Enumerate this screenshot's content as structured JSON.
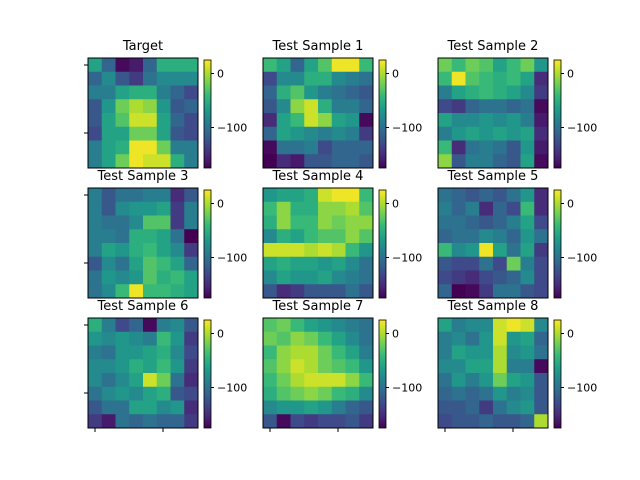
{
  "colors": {
    "colormap": "viridis",
    "stops": [
      "#440154",
      "#482878",
      "#3e4989",
      "#31688e",
      "#26828e",
      "#1f9e89",
      "#35b779",
      "#6ece58",
      "#b5de2b",
      "#fde725"
    ]
  },
  "chart_data": [
    {
      "type": "heatmap",
      "title": "Target",
      "colorbar": {
        "range": [
          -175,
          25
        ],
        "ticks": [
          0,
          -100
        ]
      },
      "grid": [
        [
          -60,
          -110,
          -170,
          -160,
          -110,
          -50,
          -50,
          -50
        ],
        [
          -110,
          -80,
          -120,
          -140,
          -100,
          -80,
          -80,
          -80
        ],
        [
          -90,
          -90,
          -60,
          -50,
          -50,
          -90,
          -110,
          -130
        ],
        [
          -120,
          -70,
          -20,
          0,
          -10,
          -70,
          -120,
          -110
        ],
        [
          -120,
          -60,
          -30,
          10,
          10,
          -60,
          -110,
          -130
        ],
        [
          -130,
          -60,
          -60,
          -20,
          -20,
          -60,
          -120,
          -130
        ],
        [
          -90,
          -60,
          -50,
          20,
          20,
          -20,
          -90,
          -90
        ],
        [
          -90,
          -60,
          -20,
          20,
          10,
          10,
          -50,
          -90
        ]
      ]
    },
    {
      "type": "heatmap",
      "title": "Test Sample 1",
      "colorbar": {
        "range": [
          -175,
          25
        ],
        "ticks": [
          0,
          -100
        ]
      },
      "grid": [
        [
          -40,
          -60,
          -110,
          -60,
          -30,
          20,
          20,
          -40
        ],
        [
          -130,
          -80,
          -80,
          -50,
          -50,
          -80,
          -90,
          -100
        ],
        [
          -110,
          -50,
          -30,
          -70,
          -90,
          -100,
          -110,
          -120
        ],
        [
          -120,
          -80,
          -10,
          10,
          -50,
          -90,
          -90,
          -110
        ],
        [
          -150,
          -60,
          -40,
          10,
          -10,
          -60,
          -70,
          -170
        ],
        [
          -110,
          -60,
          -70,
          -80,
          -90,
          -80,
          -90,
          -140
        ],
        [
          -170,
          -100,
          -100,
          -90,
          -130,
          -110,
          -110,
          -110
        ],
        [
          -175,
          -150,
          -160,
          -120,
          -120,
          -110,
          -110,
          -120
        ]
      ]
    },
    {
      "type": "heatmap",
      "title": "Test Sample 2",
      "colorbar": {
        "range": [
          -175,
          25
        ],
        "ticks": [
          0,
          -100
        ]
      },
      "grid": [
        [
          -20,
          -40,
          -20,
          -30,
          -60,
          -40,
          -20,
          -70
        ],
        [
          -40,
          20,
          -30,
          -40,
          -50,
          -40,
          -60,
          -150
        ],
        [
          -90,
          -60,
          -50,
          -40,
          -50,
          -60,
          -80,
          -140
        ],
        [
          -130,
          -140,
          -110,
          -100,
          -100,
          -110,
          -100,
          -170
        ],
        [
          -60,
          -80,
          -80,
          -70,
          -80,
          -70,
          -90,
          -160
        ],
        [
          -90,
          -70,
          -60,
          -70,
          -60,
          -70,
          -60,
          -150
        ],
        [
          -40,
          -150,
          -100,
          -90,
          -100,
          -120,
          -70,
          -160
        ],
        [
          -10,
          -120,
          -90,
          -90,
          -110,
          -120,
          -60,
          -170
        ]
      ]
    },
    {
      "type": "heatmap",
      "title": "Test Sample 3",
      "colorbar": {
        "range": [
          -175,
          25
        ],
        "ticks": [
          0,
          -100
        ]
      },
      "grid": [
        [
          -90,
          -120,
          -100,
          -100,
          -90,
          -90,
          -150,
          -120
        ],
        [
          -90,
          -120,
          -80,
          -70,
          -70,
          -60,
          -140,
          -90
        ],
        [
          -90,
          -100,
          -100,
          -80,
          -30,
          -30,
          -140,
          -90
        ],
        [
          -90,
          -90,
          -100,
          -50,
          -50,
          -60,
          -100,
          -175
        ],
        [
          -90,
          -60,
          -70,
          -50,
          -40,
          -60,
          -80,
          -140
        ],
        [
          -120,
          -80,
          -100,
          -60,
          -30,
          -40,
          -60,
          -110
        ],
        [
          -100,
          -70,
          -80,
          -70,
          -30,
          -50,
          -40,
          -60
        ],
        [
          -100,
          -80,
          -40,
          20,
          -40,
          -40,
          -50,
          -60
        ]
      ]
    },
    {
      "type": "heatmap",
      "title": "Test Sample 4",
      "colorbar": {
        "range": [
          -175,
          25
        ],
        "ticks": [
          0,
          -100
        ]
      },
      "grid": [
        [
          -70,
          -60,
          -60,
          -50,
          10,
          20,
          20,
          -40
        ],
        [
          -40,
          -10,
          -50,
          -50,
          -10,
          -10,
          0,
          -30
        ],
        [
          -50,
          -10,
          -40,
          -40,
          -10,
          -20,
          -10,
          -10
        ],
        [
          -80,
          -50,
          -60,
          -40,
          -30,
          -30,
          -10,
          -30
        ],
        [
          10,
          10,
          10,
          0,
          10,
          0,
          -40,
          -70
        ],
        [
          -60,
          -50,
          -60,
          -60,
          -70,
          -60,
          -80,
          -100
        ],
        [
          -80,
          -60,
          -70,
          -70,
          -60,
          -80,
          -90,
          -100
        ],
        [
          -120,
          -150,
          -140,
          -120,
          -120,
          -120,
          -100,
          -120
        ]
      ]
    },
    {
      "type": "heatmap",
      "title": "Test Sample 5",
      "colorbar": {
        "range": [
          -175,
          25
        ],
        "ticks": [
          0,
          -100
        ]
      },
      "grid": [
        [
          -100,
          -110,
          -120,
          -110,
          -120,
          -100,
          -70,
          -150
        ],
        [
          -90,
          -110,
          -90,
          -150,
          -110,
          -130,
          -40,
          -150
        ],
        [
          -100,
          -100,
          -110,
          -120,
          -110,
          -90,
          -60,
          -130
        ],
        [
          -110,
          -100,
          -100,
          -80,
          -90,
          -110,
          -70,
          -100
        ],
        [
          -40,
          -80,
          -70,
          20,
          -60,
          -100,
          -60,
          -140
        ],
        [
          -120,
          -130,
          -130,
          -100,
          -130,
          -20,
          -90,
          -130
        ],
        [
          -130,
          -140,
          -150,
          -130,
          -120,
          -110,
          -80,
          -130
        ],
        [
          -110,
          -175,
          -170,
          -140,
          -100,
          -100,
          -120,
          -130
        ]
      ]
    },
    {
      "type": "heatmap",
      "title": "Test Sample 6",
      "colorbar": {
        "range": [
          -175,
          25
        ],
        "ticks": [
          0,
          -100
        ]
      },
      "grid": [
        [
          -50,
          -90,
          -130,
          -110,
          -170,
          -90,
          -80,
          -120
        ],
        [
          -70,
          -80,
          -70,
          -80,
          -90,
          -40,
          -70,
          -140
        ],
        [
          -90,
          -100,
          -70,
          -70,
          -60,
          -50,
          -80,
          -130
        ],
        [
          -80,
          -80,
          -70,
          -50,
          -60,
          -40,
          -70,
          -140
        ],
        [
          -80,
          -100,
          -80,
          -60,
          10,
          -20,
          -100,
          -150
        ],
        [
          -100,
          -80,
          -70,
          -80,
          -60,
          -50,
          -120,
          -130
        ],
        [
          -120,
          -100,
          -100,
          -60,
          -60,
          -80,
          -70,
          -150
        ],
        [
          -140,
          -160,
          -100,
          -110,
          -100,
          -110,
          -110,
          -140
        ]
      ]
    },
    {
      "type": "heatmap",
      "title": "Test Sample 7",
      "colorbar": {
        "range": [
          -175,
          25
        ],
        "ticks": [
          0,
          -100
        ]
      },
      "grid": [
        [
          -30,
          -20,
          -40,
          -60,
          -70,
          -80,
          -90,
          -100
        ],
        [
          -20,
          -30,
          -10,
          -20,
          -40,
          -60,
          -80,
          -100
        ],
        [
          -40,
          -10,
          0,
          0,
          -20,
          -40,
          -60,
          -90
        ],
        [
          -30,
          -10,
          10,
          0,
          -20,
          -30,
          -40,
          -70
        ],
        [
          -40,
          -20,
          0,
          10,
          10,
          10,
          -10,
          -40
        ],
        [
          -50,
          -30,
          -20,
          -10,
          -20,
          -40,
          -50,
          -80
        ],
        [
          -80,
          -70,
          -70,
          -60,
          -70,
          -90,
          -110,
          -120
        ],
        [
          -120,
          -170,
          -130,
          -140,
          -130,
          -130,
          -120,
          -140
        ]
      ]
    },
    {
      "type": "heatmap",
      "title": "Test Sample 8",
      "colorbar": {
        "range": [
          -175,
          25
        ],
        "ticks": [
          0,
          -100
        ]
      },
      "grid": [
        [
          -60,
          -90,
          -80,
          -80,
          10,
          20,
          10,
          -80
        ],
        [
          -90,
          -80,
          -100,
          -70,
          10,
          -70,
          -60,
          -110
        ],
        [
          -90,
          -60,
          -70,
          -70,
          0,
          -80,
          -70,
          -100
        ],
        [
          -80,
          -80,
          -60,
          -60,
          0,
          -90,
          -90,
          -170
        ],
        [
          -100,
          -70,
          -90,
          -70,
          -20,
          -60,
          -70,
          -120
        ],
        [
          -110,
          -100,
          -110,
          -100,
          -70,
          -90,
          -80,
          -120
        ],
        [
          -120,
          -120,
          -110,
          -140,
          -100,
          -80,
          -70,
          -120
        ],
        [
          -130,
          -120,
          -120,
          -110,
          -120,
          -120,
          -110,
          0
        ]
      ]
    }
  ]
}
